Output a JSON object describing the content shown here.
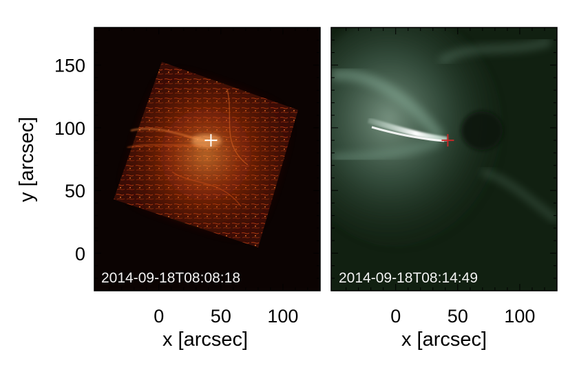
{
  "panels": [
    {
      "name": "left",
      "timestamp": "2014-09-18T08:08:18",
      "background": "#0b0302",
      "marker_color": "#ffffff",
      "marker": {
        "x": 42,
        "y": 90
      }
    },
    {
      "name": "right",
      "timestamp": "2014-09-18T08:14:49",
      "background": "#112011",
      "marker_color": "#c62828",
      "marker": {
        "x": 42,
        "y": 90
      }
    }
  ],
  "axes": {
    "xlabel": "x [arcsec]",
    "ylabel": "y [arcsec]",
    "xlim": [
      -52,
      130
    ],
    "ylim": [
      -30,
      180
    ],
    "xticks": [
      "0",
      "50",
      "100"
    ],
    "yticks": [
      "0",
      "50",
      "100",
      "150"
    ]
  }
}
